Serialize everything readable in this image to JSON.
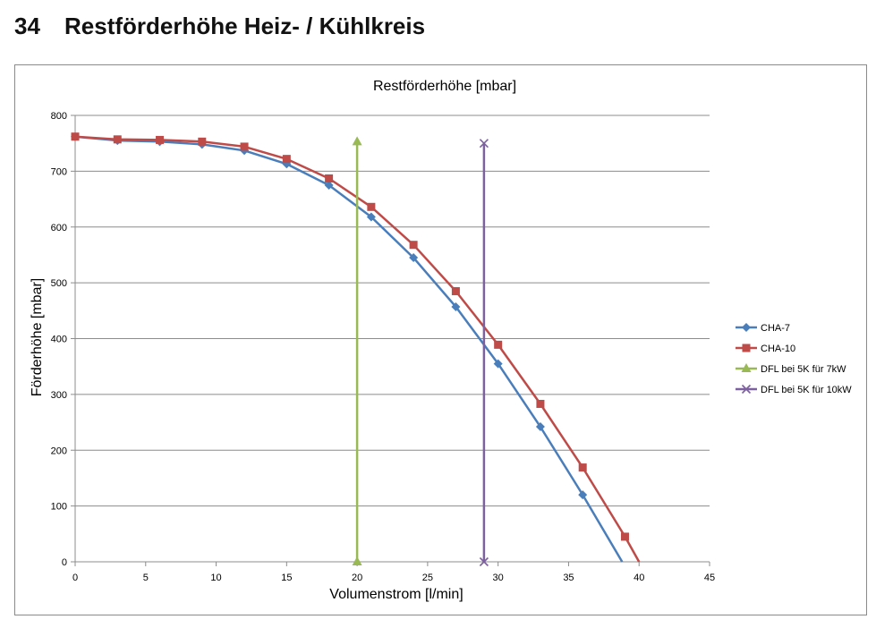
{
  "section": {
    "number": "34",
    "title": "Restförderhöhe Heiz- / Kühlkreis"
  },
  "chart_data": {
    "type": "line",
    "title": "Restförderhöhe  [mbar]",
    "xlabel": "Volumenstrom [l/min]",
    "ylabel": "Förderhöhe  [mbar]",
    "xlim": [
      0,
      45
    ],
    "ylim": [
      0,
      800
    ],
    "xticks": [
      0,
      5,
      10,
      15,
      20,
      25,
      30,
      35,
      40,
      45
    ],
    "yticks": [
      0,
      100,
      200,
      300,
      400,
      500,
      600,
      700,
      800
    ],
    "grid": "horizontal",
    "legend_position": "right",
    "series": [
      {
        "name": "CHA-7",
        "color": "#4a7ebb",
        "marker": "diamond",
        "points": [
          [
            0,
            762
          ],
          [
            3,
            755
          ],
          [
            6,
            753
          ],
          [
            9,
            748
          ],
          [
            12,
            737
          ],
          [
            15,
            713
          ],
          [
            18,
            675
          ],
          [
            21,
            618
          ],
          [
            24,
            545
          ],
          [
            27,
            457
          ],
          [
            30,
            355
          ],
          [
            33,
            242
          ],
          [
            36,
            120
          ],
          [
            38.8,
            0
          ]
        ]
      },
      {
        "name": "CHA-10",
        "color": "#be4b48",
        "marker": "square",
        "points": [
          [
            0,
            762
          ],
          [
            3,
            757
          ],
          [
            6,
            756
          ],
          [
            9,
            753
          ],
          [
            12,
            744
          ],
          [
            15,
            722
          ],
          [
            18,
            687
          ],
          [
            21,
            636
          ],
          [
            24,
            568
          ],
          [
            27,
            485
          ],
          [
            30,
            389
          ],
          [
            33,
            283
          ],
          [
            36,
            169
          ],
          [
            39,
            45
          ],
          [
            40,
            0
          ]
        ]
      },
      {
        "name": "DFL bei 5K für 7kW",
        "color": "#98b954",
        "marker": "triangle",
        "points": [
          [
            20,
            0
          ],
          [
            20,
            753
          ]
        ]
      },
      {
        "name": "DFL bei 5K für 10kW",
        "color": "#7d60a0",
        "marker": "x",
        "points": [
          [
            29,
            0
          ],
          [
            29,
            750
          ]
        ]
      }
    ]
  }
}
